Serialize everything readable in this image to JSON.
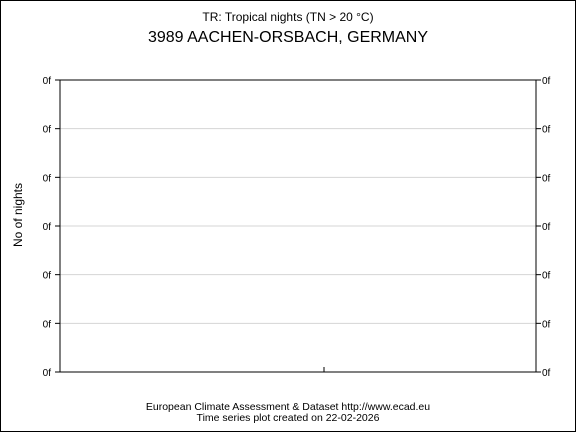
{
  "chart_data": {
    "type": "line",
    "subtitle": "TR: Tropical nights (TN > 20 °C)",
    "title": "3989 AACHEN-ORSBACH, GERMANY",
    "xlabel": "",
    "ylabel": "No of nights",
    "y_ticks": [
      "0f",
      "0f",
      "0f",
      "0f",
      "0f",
      "0f",
      "0f"
    ],
    "x_ticks": [],
    "series": [],
    "grid": true,
    "legend": "none",
    "colors": {
      "grid": "#d4d4d4",
      "axis": "#000000",
      "background": "#ffffff"
    }
  },
  "footer": {
    "line1": "European Climate Assessment & Dataset  http://www.ecad.eu",
    "line2": "Time series plot created on 22-02-2026"
  }
}
